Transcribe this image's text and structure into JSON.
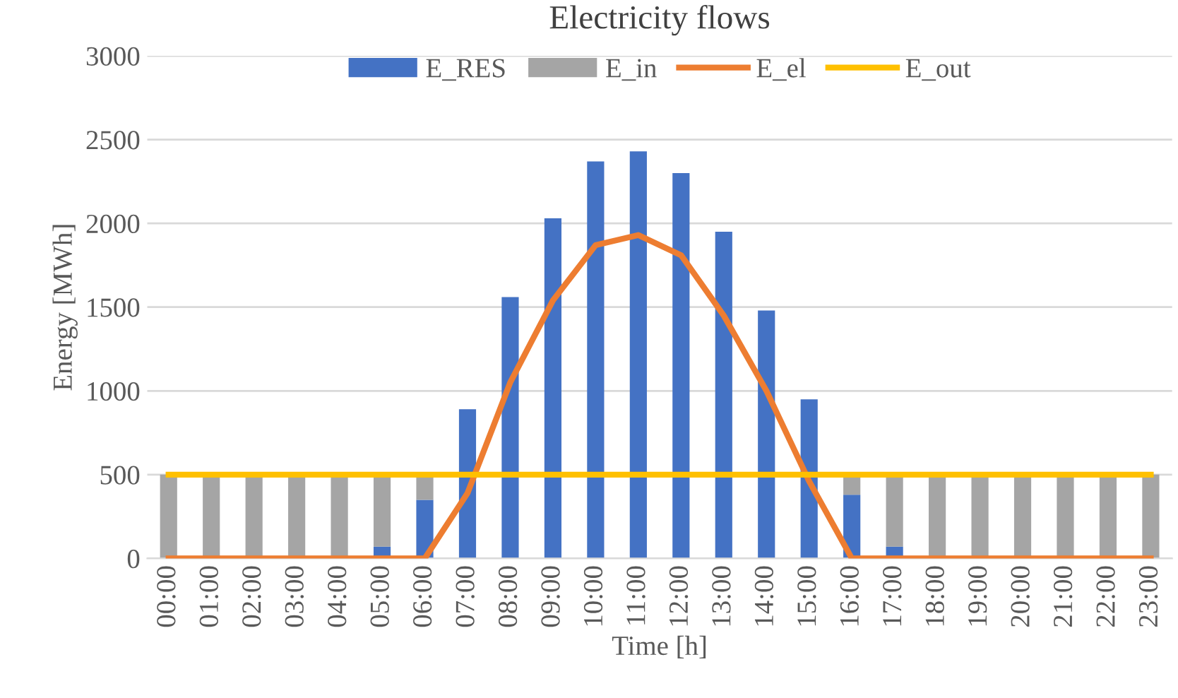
{
  "chart_data": {
    "type": "bar",
    "title": "Electricity flows",
    "xlabel": "Time [h]",
    "ylabel": "Energy [MWh]",
    "categories": [
      "00:00",
      "01:00",
      "02:00",
      "03:00",
      "04:00",
      "05:00",
      "06:00",
      "07:00",
      "08:00",
      "09:00",
      "10:00",
      "11:00",
      "12:00",
      "13:00",
      "14:00",
      "15:00",
      "16:00",
      "17:00",
      "18:00",
      "19:00",
      "20:00",
      "21:00",
      "22:00",
      "23:00"
    ],
    "stacked": true,
    "ylim": [
      0,
      3000
    ],
    "yticks": [
      0,
      500,
      1000,
      1500,
      2000,
      2500,
      3000
    ],
    "grid": "y",
    "legend": "top",
    "series": [
      {
        "name": "E_RES",
        "color": "#4472c4",
        "values": [
          0,
          0,
          0,
          0,
          0,
          70,
          350,
          890,
          1560,
          2030,
          2370,
          2430,
          2300,
          1950,
          1480,
          950,
          380,
          70,
          0,
          0,
          0,
          0,
          0,
          0
        ]
      },
      {
        "name": "E_in",
        "color": "#a5a5a5",
        "values": [
          500,
          500,
          500,
          500,
          500,
          430,
          150,
          0,
          0,
          0,
          0,
          0,
          0,
          0,
          0,
          0,
          120,
          430,
          500,
          500,
          500,
          500,
          500,
          500
        ]
      },
      {
        "name": "E_el",
        "color": "#ed7d31",
        "type": "line",
        "values": [
          0,
          0,
          0,
          0,
          0,
          0,
          0,
          390,
          1050,
          1540,
          1870,
          1930,
          1810,
          1450,
          1000,
          460,
          0,
          0,
          0,
          0,
          0,
          0,
          0,
          0
        ]
      },
      {
        "name": "E_out",
        "color": "#ffc000",
        "type": "line",
        "values": [
          500,
          500,
          500,
          500,
          500,
          500,
          500,
          500,
          500,
          500,
          500,
          500,
          500,
          500,
          500,
          500,
          500,
          500,
          500,
          500,
          500,
          500,
          500,
          500
        ]
      }
    ]
  }
}
